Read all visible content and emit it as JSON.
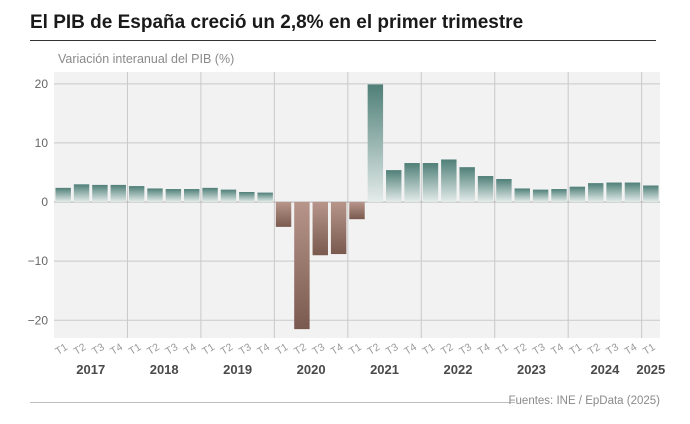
{
  "title": "El PIB de España creció un 2,8% en el primer trimestre",
  "subtitle": "Variación interanual del PIB (%)",
  "source": "Fuentes: INE / EpData (2025)",
  "colors": {
    "positive_top": "#4f7f78",
    "positive_bottom": "#e4ecea",
    "negative_top": "#7a5a4e",
    "negative_bottom": "#b7958a",
    "plot_bg": "#f2f2f2",
    "grid": "#c9c9c9"
  },
  "chart_data": {
    "type": "bar",
    "ylim": [
      -23,
      22
    ],
    "yticks": [
      20,
      10,
      0,
      -10,
      -20
    ],
    "ytick_labels": [
      "20",
      "10",
      "0",
      "−10",
      "−20"
    ],
    "categories": [
      "T1",
      "T2",
      "T3",
      "T4",
      "T1",
      "T2",
      "T3",
      "T4",
      "T1",
      "T2",
      "T3",
      "T4",
      "T1",
      "T2",
      "T3",
      "T4",
      "T1",
      "T2",
      "T3",
      "T4",
      "T1",
      "T2",
      "T3",
      "T4",
      "T1",
      "T2",
      "T3",
      "T4",
      "T1",
      "T2",
      "T3",
      "T4",
      "T1"
    ],
    "values": [
      2.4,
      3.0,
      2.9,
      2.9,
      2.7,
      2.3,
      2.2,
      2.2,
      2.4,
      2.1,
      1.7,
      1.6,
      -4.2,
      -21.5,
      -9.0,
      -8.8,
      -2.9,
      19.9,
      5.4,
      6.6,
      6.6,
      7.2,
      5.9,
      4.4,
      3.9,
      2.3,
      2.1,
      2.2,
      2.6,
      3.2,
      3.3,
      3.3,
      2.8
    ],
    "years": [
      {
        "label": "2017",
        "start": 0,
        "count": 4
      },
      {
        "label": "2018",
        "start": 4,
        "count": 4
      },
      {
        "label": "2019",
        "start": 8,
        "count": 4
      },
      {
        "label": "2020",
        "start": 12,
        "count": 4
      },
      {
        "label": "2021",
        "start": 16,
        "count": 4
      },
      {
        "label": "2022",
        "start": 20,
        "count": 4
      },
      {
        "label": "2023",
        "start": 24,
        "count": 4
      },
      {
        "label": "2024",
        "start": 28,
        "count": 4
      },
      {
        "label": "2025",
        "start": 32,
        "count": 1
      }
    ]
  }
}
